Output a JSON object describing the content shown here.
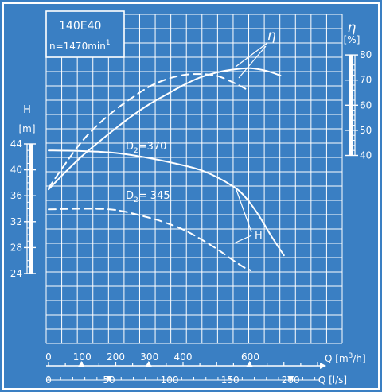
{
  "colors": {
    "background": "#3a7fc3",
    "ink": "#ffffff"
  },
  "header": {
    "model": "140E40",
    "speed": "n=1470min",
    "speed_exp": "1"
  },
  "chart_data": {
    "type": "line",
    "title": "140E40",
    "grid": true,
    "axes": {
      "x_q_m3h": {
        "label": "Q [m³/h]",
        "label_parts": [
          "Q [m",
          "3",
          "/h]"
        ],
        "range": [
          0,
          800
        ],
        "ticks": [
          "0",
          "100",
          "200",
          "300",
          "400",
          "600"
        ],
        "tick_values": [
          0,
          100,
          200,
          300,
          400,
          600
        ]
      },
      "x_q_ls": {
        "label": "Q [l/s]",
        "range": [
          0,
          222.2
        ],
        "ticks": [
          "0",
          "50",
          "100",
          "150",
          "200"
        ],
        "tick_values": [
          0,
          50,
          100,
          150,
          200
        ]
      },
      "y_head": {
        "label": "H",
        "unit": "[m]",
        "range": [
          24,
          44
        ],
        "ticks": [
          "24",
          "28",
          "32",
          "36",
          "40",
          "44"
        ],
        "tick_values": [
          24,
          28,
          32,
          36,
          40,
          44
        ]
      },
      "y_eta": {
        "label": "η",
        "unit": "[%]",
        "range": [
          40,
          80
        ],
        "ticks": [
          "40",
          "50",
          "60",
          "70",
          "80"
        ],
        "tick_values": [
          40,
          50,
          60,
          70,
          80
        ]
      }
    },
    "series": [
      {
        "id": "H_370",
        "axis": "y_head",
        "style": "solid",
        "label": "D₂=370",
        "label_parts": [
          "D",
          "2",
          "=370"
        ],
        "x": [
          0,
          100,
          200,
          300,
          400,
          450,
          500,
          550,
          580,
          620,
          660,
          700
        ],
        "y": [
          43.0,
          42.9,
          42.6,
          41.8,
          40.7,
          40.0,
          38.9,
          37.4,
          36.1,
          33.4,
          30.0,
          26.8
        ]
      },
      {
        "id": "H_345",
        "axis": "y_head",
        "style": "dashed",
        "label": "D₂= 345",
        "label_parts": [
          "D",
          "2",
          "= 345"
        ],
        "x": [
          0,
          100,
          200,
          300,
          350,
          400,
          450,
          500,
          550,
          580,
          600
        ],
        "y": [
          33.9,
          34.0,
          33.8,
          32.6,
          31.8,
          30.8,
          29.4,
          27.8,
          26.0,
          25.0,
          24.5
        ]
      },
      {
        "id": "eta_370",
        "axis": "y_eta",
        "style": "solid",
        "label": "η",
        "x": [
          0,
          50,
          100,
          150,
          200,
          250,
          300,
          350,
          400,
          450,
          500,
          550,
          600,
          650,
          690
        ],
        "y": [
          26.5,
          33.4,
          39.8,
          45.4,
          50.8,
          55.9,
          60.4,
          64.2,
          67.9,
          71.0,
          73.0,
          74.2,
          74.7,
          73.6,
          71.8
        ]
      },
      {
        "id": "eta_345",
        "axis": "y_eta",
        "style": "dashed",
        "label": "η",
        "x": [
          0,
          50,
          100,
          150,
          200,
          250,
          300,
          350,
          400,
          450,
          500,
          550,
          590
        ],
        "y": [
          27.0,
          36.7,
          45.7,
          52.6,
          58.3,
          63.1,
          67.4,
          70.3,
          72.0,
          72.4,
          71.7,
          69.0,
          66.2
        ]
      }
    ]
  }
}
